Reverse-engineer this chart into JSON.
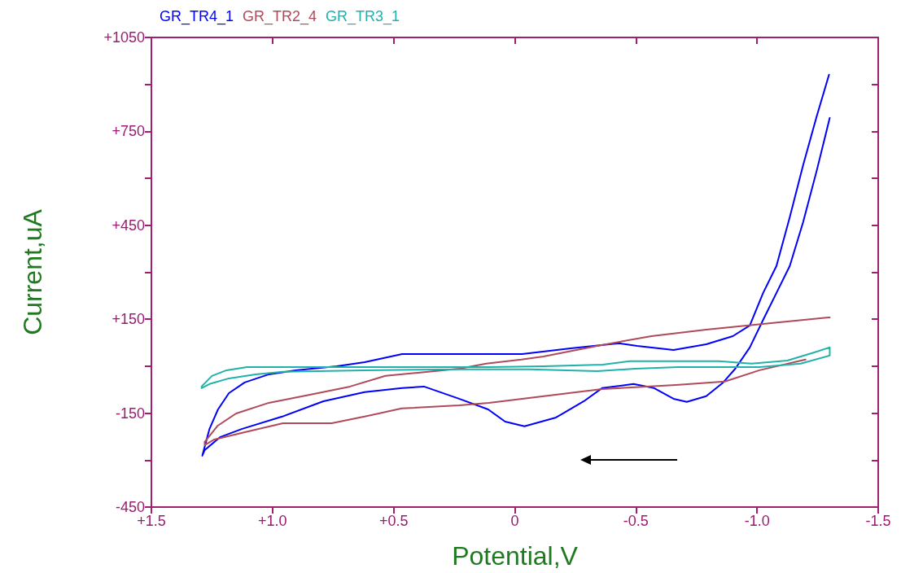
{
  "chart_data": {
    "type": "line",
    "xlabel": "Potential,V",
    "ylabel": "Current,uA",
    "xlim": [
      1.5,
      -1.5
    ],
    "ylim": [
      -450,
      1050
    ],
    "xticks": [
      {
        "value": 1.5,
        "label": "+1.5"
      },
      {
        "value": 1.0,
        "label": "+1.0"
      },
      {
        "value": 0.5,
        "label": "+0.5"
      },
      0,
      -0.5,
      {
        "value": -1.0,
        "label": "-1.0"
      },
      -1.5
    ],
    "yticks": [
      {
        "value": -450,
        "label": "-450"
      },
      {
        "value": -300,
        "label": null
      },
      {
        "value": -150,
        "label": "-150"
      },
      {
        "value": 0,
        "label": null
      },
      {
        "value": 150,
        "label": "+150"
      },
      {
        "value": 300,
        "label": null
      },
      {
        "value": 450,
        "label": "+450"
      },
      {
        "value": 600,
        "label": null
      },
      {
        "value": 750,
        "label": "+750"
      },
      {
        "value": 900,
        "label": null
      },
      {
        "value": 1050,
        "label": "+1050"
      }
    ],
    "grid": false,
    "legend": "top left",
    "marker": "none",
    "line_style": "solid",
    "series": [
      {
        "name": "GR_TR4_1",
        "color": "#0000ff",
        "x": [
          -1.3,
          -1.246,
          -1.19,
          -1.135,
          -1.08,
          -1.025,
          -0.97,
          -0.91,
          -0.86,
          -0.79,
          -0.71,
          -0.655,
          -0.575,
          -0.49,
          -0.36,
          -0.285,
          -0.17,
          -0.04,
          0.04,
          0.11,
          0.23,
          0.375,
          0.465,
          0.62,
          0.79,
          0.96,
          1.125,
          1.215,
          1.28,
          1.29,
          1.26,
          1.225,
          1.18,
          1.115,
          1.015,
          0.905,
          0.735,
          0.62,
          0.465,
          0.32,
          -0.03,
          -0.23,
          -0.43,
          -0.505,
          -0.655,
          -0.79,
          -0.9,
          -0.97,
          -1.025,
          -1.08,
          -1.135,
          -1.19,
          -1.246,
          -1.297
        ],
        "values": [
          793,
          624,
          460,
          320,
          234,
          148,
          60,
          -8,
          -52,
          -96,
          -114,
          -104,
          -70,
          -57,
          -70,
          -112,
          -164,
          -192,
          -177,
          -138,
          -104,
          -65,
          -70,
          -83,
          -112,
          -161,
          -200,
          -226,
          -268,
          -286,
          -200,
          -138,
          -86,
          -52,
          -26,
          -13,
          0,
          13,
          39,
          39,
          39,
          57,
          73,
          65,
          52,
          70,
          96,
          130,
          234,
          320,
          476,
          642,
          798,
          931
        ]
      },
      {
        "name": "GR_TR2_4",
        "color": "#b04a5a",
        "x": [
          -1.2,
          -1.01,
          -0.867,
          -0.665,
          -0.36,
          -0.12,
          0.107,
          0.23,
          0.467,
          0.62,
          0.756,
          0.957,
          1.125,
          1.24,
          1.28,
          1.28,
          1.226,
          1.15,
          1.015,
          0.846,
          0.68,
          0.534,
          0.4,
          0.23,
          0.118,
          -0.027,
          -0.118,
          -0.34,
          -0.564,
          -0.79,
          -0.957,
          -1.125,
          -1.3
        ],
        "values": [
          21,
          -13,
          -49,
          -60,
          -73,
          -96,
          -117,
          -125,
          -135,
          -161,
          -182,
          -182,
          -213,
          -234,
          -252,
          -242,
          -190,
          -151,
          -117,
          -91,
          -65,
          -31,
          -21,
          -8,
          8,
          21,
          31,
          65,
          96,
          117,
          130,
          143,
          156
        ]
      },
      {
        "name": "GR_TR3_1",
        "color": "#20b2aa",
        "x": [
          1.293,
          1.25,
          1.19,
          1.105,
          0.846,
          0.107,
          -0.118,
          -0.363,
          -0.474,
          -0.843,
          -0.977,
          -1.125,
          -1.236,
          -1.3,
          -1.3,
          -1.18,
          -1.01,
          -0.675,
          -0.497,
          -0.34,
          -0.06,
          0.198,
          0.62,
          0.957,
          1.07,
          1.18,
          1.26,
          1.293
        ],
        "values": [
          -65,
          -31,
          -13,
          -3,
          -3,
          -3,
          0,
          5,
          16,
          16,
          8,
          18,
          44,
          60,
          34,
          8,
          -3,
          -3,
          -8,
          -16,
          -10,
          -10,
          -13,
          -18,
          -26,
          -39,
          -57,
          -70
        ]
      }
    ]
  }
}
